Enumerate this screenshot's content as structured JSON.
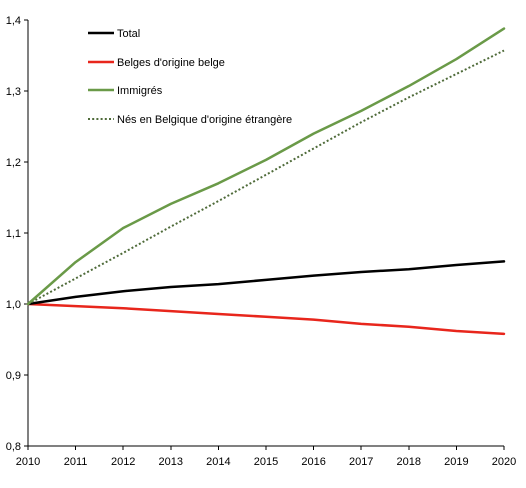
{
  "chart_data": {
    "type": "line",
    "title": "",
    "xlabel": "",
    "ylabel": "",
    "x": [
      2010,
      2011,
      2012,
      2013,
      2014,
      2015,
      2016,
      2017,
      2018,
      2019,
      2020
    ],
    "x_tick_labels": [
      "2010",
      "2011",
      "2012",
      "2013",
      "2014",
      "2015",
      "2016",
      "2017",
      "2018",
      "2019",
      "2020"
    ],
    "ylim": [
      0.8,
      1.4
    ],
    "y_ticks": [
      0.8,
      0.9,
      1.0,
      1.1,
      1.2,
      1.3,
      1.4
    ],
    "y_tick_labels": [
      "0,8",
      "0,9",
      "1,0",
      "1,1",
      "1,2",
      "1,3",
      "1,4"
    ],
    "grid": false,
    "legend_position": "top-left",
    "series": [
      {
        "name": "Total",
        "color": "#000000",
        "line_style": "solid",
        "values": [
          1.0,
          1.01,
          1.018,
          1.024,
          1.028,
          1.034,
          1.04,
          1.045,
          1.049,
          1.055,
          1.06
        ]
      },
      {
        "name": "Belges d'origine belge",
        "color": "#e8261c",
        "line_style": "solid",
        "values": [
          1.0,
          0.997,
          0.994,
          0.99,
          0.986,
          0.982,
          0.978,
          0.972,
          0.968,
          0.962,
          0.958
        ]
      },
      {
        "name": "Immigrés",
        "color": "#6a9a48",
        "line_style": "solid",
        "values": [
          1.0,
          1.059,
          1.107,
          1.141,
          1.17,
          1.203,
          1.24,
          1.272,
          1.307,
          1.345,
          1.388
        ]
      },
      {
        "name": "Nés en Belgique d'origine étrangère",
        "color": "#4f6b3a",
        "line_style": "dotted",
        "values": [
          1.0,
          1.036,
          1.072,
          1.109,
          1.145,
          1.182,
          1.219,
          1.256,
          1.291,
          1.324,
          1.357
        ]
      }
    ]
  }
}
